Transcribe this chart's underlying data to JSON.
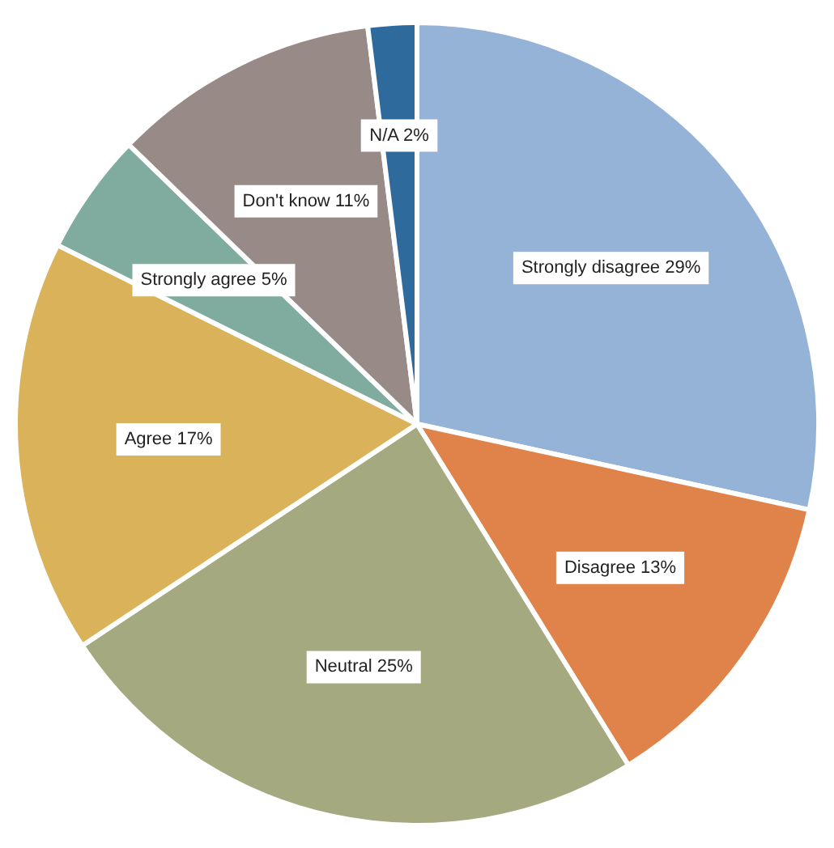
{
  "chart_data": {
    "type": "pie",
    "categories": [
      "Strongly disagree",
      "Disagree",
      "Neutral",
      "Agree",
      "Strongly agree",
      "Don't know",
      "N/A"
    ],
    "values": [
      29,
      13,
      25,
      17,
      5,
      11,
      2
    ],
    "value_labels": [
      "29%",
      "13%",
      "25%",
      "17%",
      "5%",
      "11%",
      "2%"
    ],
    "colors": [
      "#95b3d7",
      "#e0834a",
      "#a4a97f",
      "#d9b25a",
      "#7fac9f",
      "#978a87",
      "#2e6a9c"
    ],
    "legend": false
  }
}
